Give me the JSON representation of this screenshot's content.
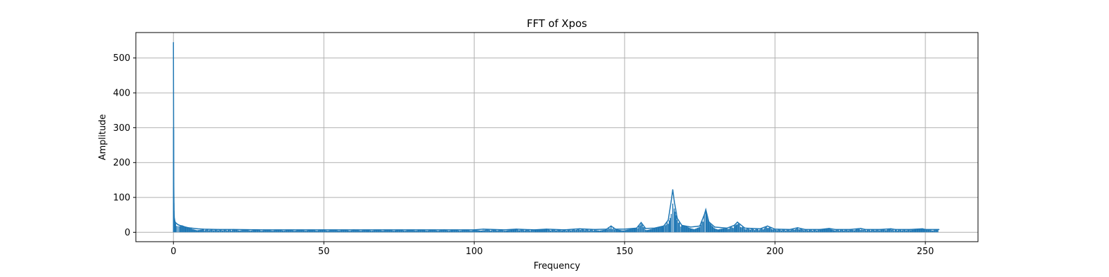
{
  "chart_data": {
    "type": "line",
    "title": "FFT of Xpos",
    "xlabel": "Frequency",
    "ylabel": "Amplitude",
    "xlim": [
      -12.5,
      267.5
    ],
    "ylim": [
      -27,
      573
    ],
    "xticks": [
      0,
      50,
      100,
      150,
      200,
      250
    ],
    "yticks": [
      0,
      100,
      200,
      300,
      400,
      500
    ],
    "grid": true,
    "legend": "none",
    "line_color": "#1f77b4",
    "series": [
      {
        "x": [
          0,
          0.05,
          0.1,
          0.15,
          0.2,
          0.3,
          0.4,
          0.5,
          0.7,
          1.0,
          1.5,
          2,
          3,
          4,
          5,
          6,
          8,
          10,
          15,
          20,
          30,
          40,
          50,
          60,
          70,
          80,
          90,
          100,
          103,
          110,
          114,
          120,
          124,
          130,
          135,
          140,
          144,
          145.5,
          147,
          150,
          154,
          155.5,
          157,
          160,
          163,
          164.5,
          165.5,
          166,
          166.5,
          167.5,
          169,
          172,
          175,
          176.5,
          177,
          178,
          180,
          184,
          186.5,
          187.5,
          190,
          195,
          197.5,
          200,
          205,
          207.5,
          210,
          215,
          218,
          220,
          225,
          228.5,
          230,
          235,
          238.5,
          240,
          245,
          249,
          250,
          254.5
        ],
        "values": [
          544,
          300,
          140,
          100,
          60,
          40,
          35,
          30,
          28,
          25,
          22,
          20,
          18,
          15,
          13,
          12,
          10,
          9,
          8,
          8,
          7,
          7,
          7,
          7,
          7,
          7,
          7,
          7,
          9,
          7,
          9,
          7,
          9,
          7,
          10,
          8,
          9,
          18,
          9,
          9,
          12,
          28,
          11,
          12,
          18,
          35,
          90,
          122,
          90,
          40,
          20,
          15,
          18,
          50,
          65,
          30,
          15,
          12,
          20,
          29,
          12,
          10,
          18,
          9,
          8,
          13,
          8,
          8,
          11,
          8,
          8,
          11,
          8,
          8,
          10,
          8,
          8,
          10,
          8,
          8
        ]
      }
    ]
  }
}
